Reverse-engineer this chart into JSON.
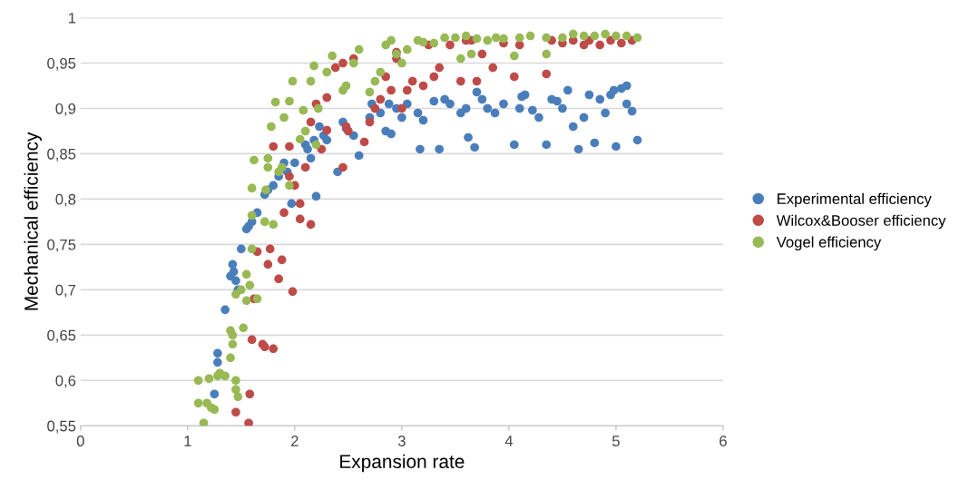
{
  "chart_data": {
    "type": "scatter",
    "xlabel": "Expansion rate",
    "ylabel": "Mechanical efficiency",
    "xlim": [
      0,
      6
    ],
    "xticks": [
      0,
      1,
      2,
      3,
      4,
      5,
      6
    ],
    "ylim": [
      0.55,
      1
    ],
    "yticks": [
      {
        "value": 0.55,
        "label": "0,55"
      },
      {
        "value": 0.6,
        "label": "0,6"
      },
      {
        "value": 0.65,
        "label": "0,65"
      },
      {
        "value": 0.7,
        "label": "0,7"
      },
      {
        "value": 0.75,
        "label": "0,75"
      },
      {
        "value": 0.8,
        "label": "0,8"
      },
      {
        "value": 0.85,
        "label": "0,85"
      },
      {
        "value": 0.9,
        "label": "0,9"
      },
      {
        "value": 0.95,
        "label": "0,95"
      },
      {
        "value": 1,
        "label": "1"
      }
    ],
    "grid": "y",
    "legend": "right",
    "marker": "circle",
    "series": [
      {
        "name": "Experimental efficiency",
        "color": "#4a7ebb",
        "x": [
          1.25,
          1.28,
          1.28,
          1.35,
          1.4,
          1.42,
          1.43,
          1.45,
          1.47,
          1.5,
          1.55,
          1.57,
          1.6,
          1.65,
          1.72,
          1.75,
          1.8,
          1.85,
          1.9,
          1.93,
          1.97,
          2.0,
          2.1,
          2.12,
          2.15,
          2.18,
          2.2,
          2.23,
          2.27,
          2.3,
          2.4,
          2.45,
          2.48,
          2.55,
          2.6,
          2.7,
          2.72,
          2.8,
          2.85,
          2.9,
          2.88,
          2.95,
          3.0,
          3.05,
          3.15,
          3.17,
          3.2,
          3.3,
          3.35,
          3.4,
          3.45,
          3.55,
          3.6,
          3.62,
          3.68,
          3.7,
          3.75,
          3.8,
          3.87,
          3.95,
          4.05,
          4.1,
          4.12,
          4.15,
          4.22,
          4.28,
          4.35,
          4.4,
          4.45,
          4.5,
          4.55,
          4.6,
          4.65,
          4.7,
          4.75,
          4.8,
          4.85,
          4.9,
          4.95,
          5.0,
          5.05,
          5.1,
          5.15,
          5.2,
          4.98,
          5.1
        ],
        "values": [
          0.585,
          0.63,
          0.62,
          0.678,
          0.715,
          0.728,
          0.72,
          0.71,
          0.7,
          0.745,
          0.767,
          0.77,
          0.775,
          0.785,
          0.805,
          0.81,
          0.815,
          0.825,
          0.84,
          0.83,
          0.795,
          0.84,
          0.86,
          0.855,
          0.845,
          0.865,
          0.803,
          0.88,
          0.87,
          0.865,
          0.83,
          0.885,
          0.878,
          0.87,
          0.848,
          0.89,
          0.905,
          0.895,
          0.875,
          0.872,
          0.905,
          0.9,
          0.89,
          0.905,
          0.895,
          0.855,
          0.887,
          0.908,
          0.855,
          0.91,
          0.905,
          0.895,
          0.9,
          0.868,
          0.857,
          0.918,
          0.91,
          0.9,
          0.895,
          0.905,
          0.86,
          0.9,
          0.913,
          0.915,
          0.898,
          0.89,
          0.86,
          0.91,
          0.908,
          0.9,
          0.92,
          0.88,
          0.855,
          0.89,
          0.915,
          0.862,
          0.91,
          0.895,
          0.915,
          0.858,
          0.922,
          0.905,
          0.897,
          0.865,
          0.92,
          0.925
        ]
      },
      {
        "name": "Wilcox&Booser efficiency",
        "color": "#be4b48",
        "x": [
          1.45,
          1.57,
          1.58,
          1.6,
          1.7,
          1.72,
          1.8,
          1.62,
          1.75,
          1.85,
          1.65,
          1.77,
          1.88,
          1.98,
          2.05,
          2.15,
          1.8,
          1.9,
          1.95,
          2.0,
          2.05,
          1.95,
          2.1,
          2.15,
          2.25,
          2.3,
          2.45,
          2.48,
          2.5,
          2.2,
          2.3,
          2.38,
          2.45,
          2.55,
          2.65,
          2.7,
          2.75,
          2.8,
          2.85,
          2.9,
          2.95,
          3.0,
          3.05,
          3.1,
          3.2,
          3.25,
          3.3,
          3.35,
          3.45,
          3.55,
          3.6,
          3.7,
          3.75,
          3.85,
          3.95,
          4.05,
          4.1,
          4.35,
          4.4,
          4.5,
          4.6,
          4.7,
          4.75,
          4.85,
          4.95,
          5.05,
          5.15,
          2.95,
          3.65
        ],
        "values": [
          0.565,
          0.553,
          0.585,
          0.645,
          0.64,
          0.637,
          0.635,
          0.69,
          0.728,
          0.712,
          0.742,
          0.745,
          0.733,
          0.698,
          0.778,
          0.772,
          0.858,
          0.785,
          0.825,
          0.815,
          0.795,
          0.858,
          0.835,
          0.885,
          0.855,
          0.876,
          0.835,
          0.88,
          0.875,
          0.905,
          0.912,
          0.945,
          0.95,
          0.955,
          0.863,
          0.885,
          0.9,
          0.91,
          0.935,
          0.92,
          0.955,
          0.9,
          0.92,
          0.93,
          0.925,
          0.97,
          0.935,
          0.945,
          0.97,
          0.93,
          0.975,
          0.93,
          0.96,
          0.945,
          0.972,
          0.935,
          0.97,
          0.938,
          0.975,
          0.972,
          0.975,
          0.97,
          0.975,
          0.97,
          0.975,
          0.972,
          0.975,
          0.962,
          0.975
        ]
      },
      {
        "name": "Vogel efficiency",
        "color": "#98b954",
        "x": [
          1.1,
          1.1,
          1.15,
          1.18,
          1.2,
          1.22,
          1.25,
          1.28,
          1.3,
          1.35,
          1.4,
          1.42,
          1.42,
          1.45,
          1.45,
          1.47,
          1.4,
          1.52,
          1.45,
          1.5,
          1.55,
          1.58,
          1.6,
          1.55,
          1.6,
          1.65,
          1.6,
          1.62,
          1.72,
          1.73,
          1.75,
          1.75,
          1.78,
          1.8,
          1.82,
          1.85,
          1.88,
          1.9,
          1.95,
          1.95,
          1.98,
          2.05,
          2.08,
          2.1,
          2.15,
          2.18,
          2.2,
          2.22,
          2.3,
          2.35,
          2.45,
          2.48,
          2.55,
          2.6,
          2.7,
          2.75,
          2.8,
          2.85,
          2.9,
          2.95,
          3.0,
          3.05,
          3.15,
          3.2,
          3.3,
          3.4,
          3.5,
          3.55,
          3.6,
          3.65,
          3.7,
          3.8,
          3.88,
          3.95,
          4.05,
          4.1,
          4.2,
          4.35,
          4.35,
          4.5,
          4.6,
          4.7,
          4.8,
          4.9,
          5.0,
          5.1,
          5.2
        ],
        "values": [
          0.6,
          0.575,
          0.553,
          0.575,
          0.602,
          0.57,
          0.568,
          0.605,
          0.608,
          0.605,
          0.625,
          0.64,
          0.65,
          0.6,
          0.59,
          0.582,
          0.655,
          0.658,
          0.695,
          0.7,
          0.717,
          0.705,
          0.745,
          0.688,
          0.782,
          0.69,
          0.812,
          0.843,
          0.775,
          0.81,
          0.835,
          0.845,
          0.88,
          0.772,
          0.907,
          0.83,
          0.835,
          0.89,
          0.908,
          0.815,
          0.93,
          0.866,
          0.898,
          0.875,
          0.93,
          0.947,
          0.86,
          0.9,
          0.94,
          0.958,
          0.92,
          0.925,
          0.95,
          0.965,
          0.918,
          0.93,
          0.94,
          0.97,
          0.975,
          0.96,
          0.95,
          0.965,
          0.975,
          0.973,
          0.972,
          0.978,
          0.978,
          0.955,
          0.98,
          0.96,
          0.977,
          0.975,
          0.978,
          0.977,
          0.958,
          0.978,
          0.98,
          0.96,
          0.978,
          0.978,
          0.982,
          0.98,
          0.98,
          0.982,
          0.98,
          0.98,
          0.978
        ]
      }
    ]
  }
}
